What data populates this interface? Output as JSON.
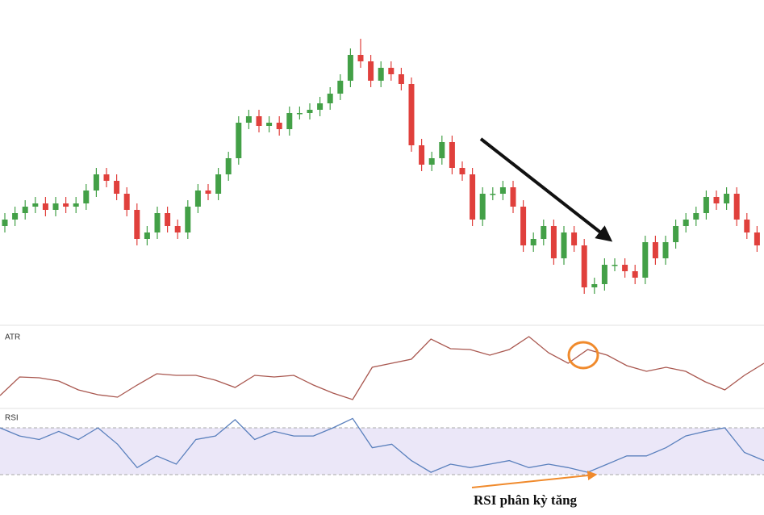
{
  "chart_data": [
    {
      "type": "candlestick",
      "ylim": [
        0,
        100
      ],
      "up_color": "#43a047",
      "down_color": "#e0403c",
      "open": [
        30,
        32,
        34,
        36,
        37,
        35,
        37,
        36,
        37,
        41,
        46,
        44,
        40,
        35,
        26,
        28,
        34,
        30,
        28,
        36,
        41,
        40,
        46,
        51,
        62,
        64,
        61,
        62,
        60,
        65,
        65,
        66,
        68,
        71,
        75,
        83,
        81,
        75,
        79,
        77,
        74,
        55,
        49,
        51,
        56,
        48,
        46,
        32,
        40,
        40,
        42,
        36,
        24,
        26,
        30,
        20,
        28,
        24,
        11,
        12,
        18,
        18,
        16,
        14,
        25,
        20,
        25,
        30,
        32,
        34,
        39,
        37,
        40,
        32,
        28
      ],
      "high": [
        34,
        36,
        38,
        39,
        39,
        39,
        39,
        39,
        43,
        48,
        48,
        46,
        42,
        37,
        30,
        36,
        36,
        32,
        38,
        43,
        43,
        48,
        53,
        64,
        66,
        66,
        64,
        64,
        67,
        67,
        68,
        70,
        73,
        77,
        85,
        88,
        83,
        81,
        81,
        79,
        76,
        57,
        53,
        58,
        58,
        50,
        48,
        42,
        42,
        44,
        44,
        38,
        28,
        32,
        32,
        30,
        30,
        26,
        14,
        20,
        20,
        20,
        18,
        27,
        27,
        27,
        32,
        34,
        36,
        41,
        41,
        42,
        42,
        34,
        30
      ],
      "low": [
        28,
        30,
        32,
        34,
        33,
        33,
        34,
        34,
        35,
        39,
        42,
        38,
        33,
        24,
        24,
        26,
        28,
        26,
        26,
        34,
        38,
        38,
        44,
        49,
        60,
        59,
        59,
        58,
        58,
        63,
        63,
        64,
        66,
        69,
        73,
        79,
        73,
        73,
        75,
        72,
        53,
        47,
        47,
        49,
        46,
        44,
        30,
        30,
        38,
        38,
        34,
        22,
        22,
        24,
        18,
        18,
        22,
        9,
        9,
        10,
        16,
        14,
        12,
        12,
        18,
        18,
        23,
        28,
        30,
        32,
        35,
        35,
        30,
        26,
        22
      ],
      "close": [
        32,
        34,
        36,
        37,
        35,
        37,
        36,
        37,
        41,
        46,
        44,
        40,
        35,
        26,
        28,
        34,
        30,
        28,
        36,
        41,
        40,
        46,
        51,
        62,
        64,
        61,
        62,
        60,
        65,
        65,
        66,
        68,
        71,
        75,
        83,
        81,
        75,
        79,
        77,
        74,
        55,
        49,
        51,
        56,
        48,
        46,
        32,
        40,
        40,
        42,
        36,
        24,
        26,
        30,
        20,
        28,
        24,
        11,
        12,
        18,
        18,
        16,
        14,
        25,
        20,
        25,
        30,
        32,
        34,
        39,
        37,
        40,
        32,
        28,
        24
      ]
    },
    {
      "type": "line",
      "title": "ATR",
      "ylim": [
        0,
        100
      ],
      "color": "#a9574f",
      "values": [
        15,
        38,
        37,
        33,
        22,
        16,
        13,
        28,
        42,
        40,
        40,
        34,
        25,
        40,
        38,
        40,
        28,
        18,
        10,
        50,
        55,
        60,
        85,
        73,
        72,
        65,
        72,
        88,
        68,
        55,
        72,
        65,
        52,
        45,
        50,
        45,
        32,
        22,
        40,
        55
      ]
    },
    {
      "type": "line",
      "title": "RSI",
      "ylim": [
        0,
        100
      ],
      "color": "#5a80bd",
      "band": [
        30,
        70
      ],
      "band_color": "#ebe7f8",
      "annotation": "RSI phân kỳ tăng",
      "values": [
        70,
        63,
        60,
        67,
        60,
        70,
        56,
        36,
        46,
        39,
        60,
        63,
        77,
        60,
        67,
        63,
        63,
        70,
        78,
        53,
        56,
        42,
        32,
        39,
        36,
        39,
        42,
        36,
        39,
        36,
        32,
        39,
        46,
        46,
        53,
        63,
        67,
        70,
        49,
        42
      ]
    }
  ]
}
